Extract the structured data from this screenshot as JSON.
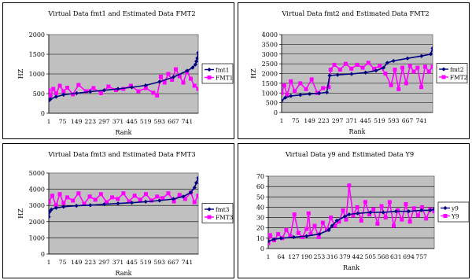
{
  "chart_data": [
    {
      "type": "line",
      "title": "Virtual Data fmt1 and Estimated Data FMT2",
      "xlabel": "Rank",
      "ylabel": "HZ",
      "ylim": [
        0,
        2000
      ],
      "yticks": [
        0,
        500,
        1000,
        1500,
        2000
      ],
      "xmax": 800,
      "xticks": [
        1,
        75,
        149,
        223,
        297,
        371,
        445,
        519,
        593,
        667,
        741
      ],
      "grid": true,
      "legend": "right",
      "series": [
        {
          "name": "fmt1",
          "color": "#000080",
          "marker": "diamond",
          "x": [
            1,
            10,
            40,
            80,
            150,
            223,
            297,
            371,
            445,
            519,
            593,
            667,
            741,
            770,
            785,
            790,
            795,
            800
          ],
          "values": [
            320,
            360,
            420,
            470,
            510,
            550,
            585,
            620,
            660,
            710,
            800,
            920,
            1080,
            1160,
            1240,
            1320,
            1400,
            1540
          ]
        },
        {
          "name": "FMT1",
          "color": "#ff00ff",
          "marker": "square",
          "x": [
            1,
            10,
            25,
            40,
            60,
            80,
            100,
            130,
            160,
            200,
            240,
            280,
            320,
            360,
            400,
            440,
            480,
            520,
            560,
            580,
            600,
            620,
            640,
            660,
            680,
            700,
            720,
            740,
            760,
            780,
            800
          ],
          "values": [
            580,
            450,
            620,
            510,
            700,
            560,
            650,
            480,
            720,
            560,
            640,
            510,
            680,
            590,
            620,
            700,
            560,
            640,
            520,
            450,
            930,
            780,
            1000,
            850,
            1120,
            940,
            780,
            1060,
            880,
            700,
            620
          ]
        }
      ]
    },
    {
      "type": "line",
      "title": "Virtual Data fmt2 and Estimated Data FMT2",
      "xlabel": "Rank",
      "ylabel": "HZ",
      "ylim": [
        0,
        4000
      ],
      "yticks": [
        0,
        500,
        1000,
        1500,
        2000,
        2500,
        3000,
        3500,
        4000
      ],
      "xmax": 800,
      "xticks": [
        1,
        75,
        149,
        223,
        297,
        371,
        445,
        519,
        593,
        667,
        741
      ],
      "grid": true,
      "legend": "right",
      "series": [
        {
          "name": "fmt2",
          "color": "#000080",
          "marker": "diamond",
          "x": [
            1,
            20,
            50,
            100,
            149,
            200,
            240,
            255,
            297,
            371,
            445,
            500,
            540,
            560,
            593,
            667,
            741,
            790,
            800
          ],
          "values": [
            600,
            760,
            850,
            900,
            950,
            990,
            1030,
            1900,
            1930,
            1980,
            2050,
            2150,
            2300,
            2550,
            2650,
            2780,
            2900,
            3000,
            3300
          ]
        },
        {
          "name": "FMT2",
          "color": "#ff00ff",
          "marker": "square",
          "x": [
            1,
            15,
            30,
            50,
            70,
            100,
            130,
            160,
            190,
            220,
            250,
            260,
            280,
            310,
            340,
            370,
            400,
            430,
            460,
            490,
            520,
            550,
            580,
            600,
            620,
            640,
            660,
            680,
            700,
            720,
            740,
            760,
            780,
            800
          ],
          "values": [
            1000,
            1400,
            900,
            1600,
            1100,
            1500,
            1200,
            1700,
            1000,
            1250,
            1300,
            2200,
            2450,
            2200,
            2500,
            2250,
            2450,
            2300,
            2550,
            2250,
            2400,
            2000,
            1400,
            2200,
            1200,
            2300,
            1500,
            2400,
            2100,
            2300,
            1300,
            2350,
            2100,
            2350
          ]
        }
      ]
    },
    {
      "type": "line",
      "title": "Virtual Data fmt3 and Estimated Data FMT3",
      "xlabel": "Rank",
      "ylabel": "HZ",
      "ylim": [
        0,
        5000
      ],
      "yticks": [
        0,
        1000,
        2000,
        3000,
        4000,
        5000
      ],
      "xmax": 800,
      "xticks": [
        1,
        75,
        149,
        223,
        297,
        371,
        445,
        519,
        593,
        667,
        741
      ],
      "grid": true,
      "legend": "right",
      "series": [
        {
          "name": "fmt3",
          "color": "#000080",
          "marker": "diamond",
          "x": [
            1,
            5,
            15,
            40,
            80,
            149,
            223,
            297,
            371,
            445,
            519,
            593,
            667,
            720,
            760,
            780,
            790,
            800
          ],
          "values": [
            2300,
            2600,
            2750,
            2850,
            2920,
            2980,
            3020,
            3070,
            3120,
            3170,
            3230,
            3300,
            3400,
            3550,
            3800,
            4100,
            4400,
            4700
          ]
        },
        {
          "name": "FMT3",
          "color": "#ff00ff",
          "marker": "square",
          "x": [
            1,
            20,
            40,
            60,
            80,
            100,
            130,
            160,
            190,
            220,
            250,
            280,
            310,
            340,
            370,
            400,
            430,
            460,
            490,
            520,
            550,
            580,
            610,
            640,
            670,
            700,
            730,
            760,
            780,
            800
          ],
          "values": [
            3200,
            3600,
            3000,
            3700,
            3150,
            3500,
            3300,
            3750,
            3100,
            3550,
            3350,
            3700,
            3200,
            3500,
            3400,
            3750,
            3250,
            3600,
            3350,
            3700,
            3300,
            3550,
            3450,
            3750,
            3250,
            3650,
            3400,
            3800,
            3200,
            3600
          ]
        }
      ]
    },
    {
      "type": "line",
      "title": "Virtual Data y9 and Estimated Data Y9",
      "xlabel": "Rank",
      "ylabel": "",
      "ylim": [
        0,
        70
      ],
      "yticks": [
        0,
        10,
        20,
        30,
        40,
        50,
        60,
        70
      ],
      "xmax": 820,
      "xticks": [
        1,
        64,
        127,
        190,
        253,
        316,
        379,
        442,
        505,
        568,
        631,
        694,
        757
      ],
      "grid": true,
      "legend": "right",
      "series": [
        {
          "name": "y9",
          "color": "#000080",
          "marker": "diamond",
          "x": [
            1,
            30,
            64,
            127,
            190,
            253,
            300,
            316,
            340,
            379,
            400,
            442,
            505,
            568,
            631,
            694,
            757,
            800,
            820
          ],
          "values": [
            7,
            9,
            10,
            11,
            12,
            14,
            18,
            22,
            27,
            31,
            33,
            34,
            35,
            35,
            36,
            36,
            37,
            37,
            38
          ]
        },
        {
          "name": "Y9",
          "color": "#ff00ff",
          "marker": "square",
          "x": [
            1,
            10,
            30,
            50,
            70,
            90,
            110,
            130,
            150,
            170,
            190,
            200,
            210,
            230,
            250,
            270,
            290,
            310,
            330,
            350,
            370,
            385,
            400,
            420,
            440,
            460,
            480,
            500,
            520,
            540,
            560,
            580,
            600,
            620,
            640,
            660,
            680,
            700,
            720,
            740,
            760,
            780,
            800,
            820
          ],
          "values": [
            5,
            13,
            8,
            14,
            10,
            18,
            12,
            33,
            15,
            11,
            19,
            34,
            14,
            22,
            11,
            25,
            18,
            30,
            22,
            26,
            37,
            28,
            61,
            32,
            40,
            27,
            45,
            33,
            38,
            24,
            41,
            30,
            45,
            22,
            37,
            28,
            43,
            26,
            39,
            32,
            40,
            29,
            38,
            36
          ]
        }
      ]
    }
  ]
}
